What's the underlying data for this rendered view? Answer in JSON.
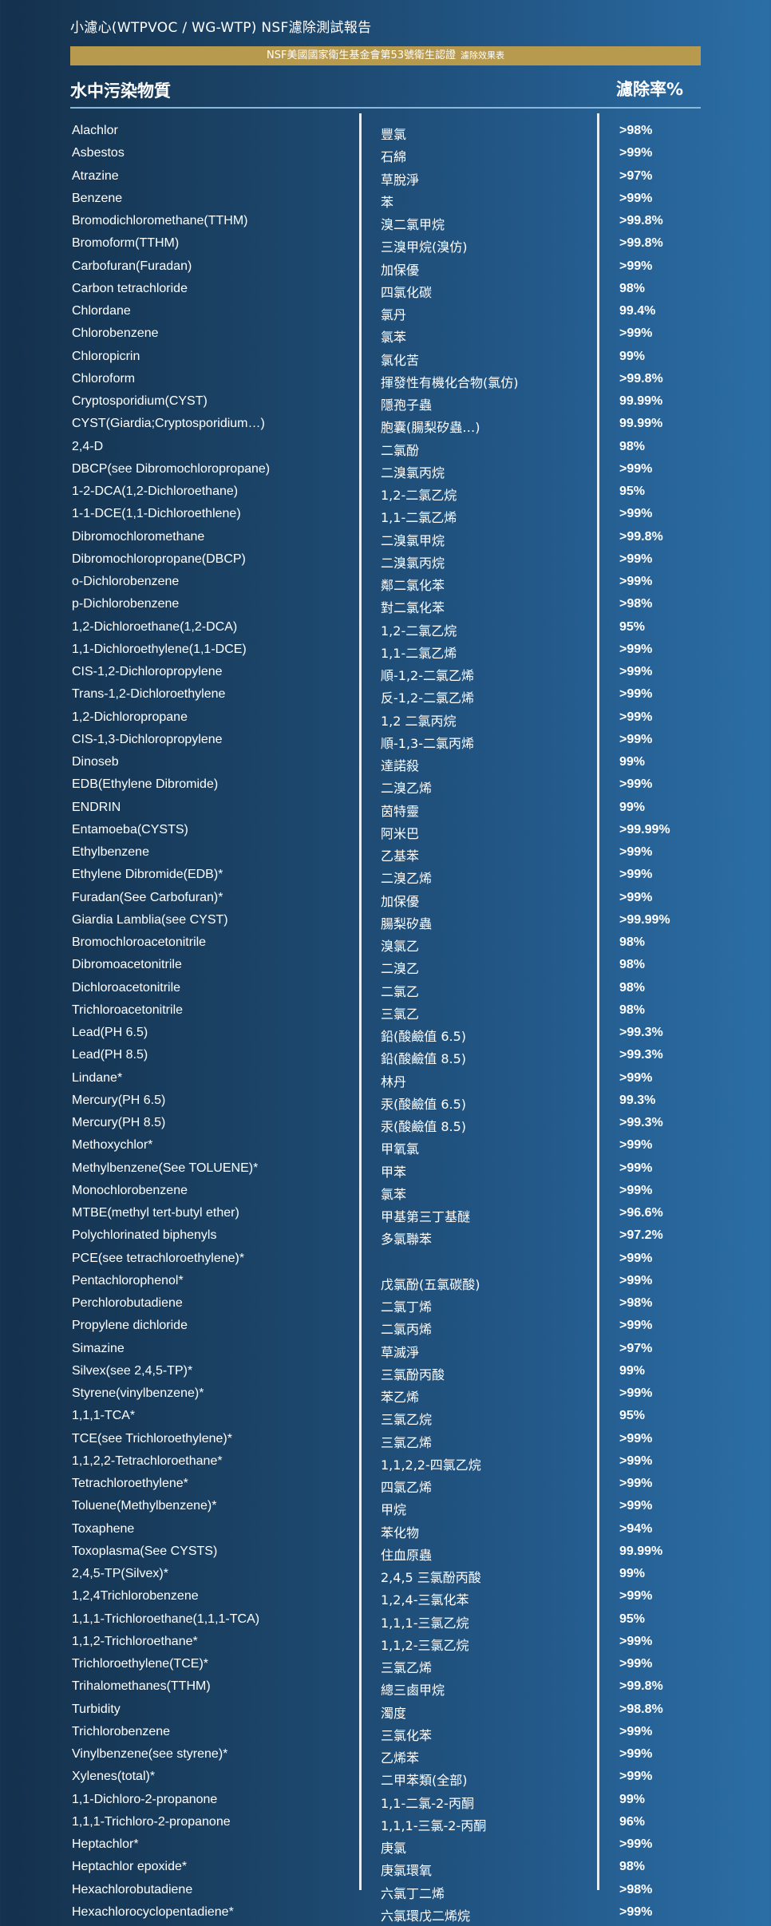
{
  "header": {
    "title": "小濾心(WTPVOC / WG-WTP) NSF濾除測試報告",
    "banner_main": "NSF美國國家衛生基金會第53號衛生認證",
    "banner_sub": "濾除效果表",
    "col_left": "水中污染物質",
    "col_right": "濾除率%"
  },
  "rows": [
    [
      "Alachlor",
      "豐氯",
      ">98%"
    ],
    [
      "Asbestos",
      "石綿",
      ">99%"
    ],
    [
      "Atrazine",
      "草脫淨",
      ">97%"
    ],
    [
      "Benzene",
      "苯",
      ">99%"
    ],
    [
      "Bromodichloromethane(TTHM)",
      "溴二氯甲烷",
      ">99.8%"
    ],
    [
      "Bromoform(TTHM)",
      "三溴甲烷(溴仿)",
      ">99.8%"
    ],
    [
      "Carbofuran(Furadan)",
      "加保優",
      ">99%"
    ],
    [
      "Carbon tetrachloride",
      "四氯化碳",
      "98%"
    ],
    [
      "Chlordane",
      "氯丹",
      "99.4%"
    ],
    [
      "Chlorobenzene",
      "氯苯",
      ">99%"
    ],
    [
      "Chloropicrin",
      "氯化苦",
      "99%"
    ],
    [
      "Chloroform",
      "揮發性有機化合物(氯仿)",
      ">99.8%"
    ],
    [
      "Cryptosporidium(CYST)",
      "隱孢子蟲",
      "99.99%"
    ],
    [
      "CYST(Giardia;Cryptosporidium…)",
      "胞囊(腸梨矽蟲…)",
      "99.99%"
    ],
    [
      "2,4-D",
      "二氯酚",
      "98%"
    ],
    [
      "DBCP(see Dibromochloropropane)",
      "二溴氯丙烷",
      ">99%"
    ],
    [
      "1-2-DCA(1,2-Dichloroethane)",
      "1,2-二氯乙烷",
      "95%"
    ],
    [
      "1-1-DCE(1,1-Dichloroethlene)",
      "1,1-二氯乙烯",
      ">99%"
    ],
    [
      "Dibromochloromethane",
      "二溴氯甲烷",
      ">99.8%"
    ],
    [
      "Dibromochloropropane(DBCP)",
      "二溴氯丙烷",
      ">99%"
    ],
    [
      "o-Dichlorobenzene",
      "鄰二氯化苯",
      ">99%"
    ],
    [
      "p-Dichlorobenzene",
      "對二氯化苯",
      ">98%"
    ],
    [
      "1,2-Dichloroethane(1,2-DCA)",
      "1,2-二氯乙烷",
      "95%"
    ],
    [
      "1,1-Dichloroethylene(1,1-DCE)",
      "1,1-二氯乙烯",
      ">99%"
    ],
    [
      "CIS-1,2-Dichloropropylene",
      "順-1,2-二氯乙烯",
      ">99%"
    ],
    [
      "Trans-1,2-Dichloroethylene",
      "反-1,2-二氯乙烯",
      ">99%"
    ],
    [
      "1,2-Dichloropropane",
      "1,2 二氯丙烷",
      ">99%"
    ],
    [
      "CIS-1,3-Dichloropropylene",
      "順-1,3-二氯丙烯",
      ">99%"
    ],
    [
      "Dinoseb",
      "達諾殺",
      "99%"
    ],
    [
      "EDB(Ethylene Dibromide)",
      "二溴乙烯",
      ">99%"
    ],
    [
      "ENDRIN",
      "茵特靈",
      "99%"
    ],
    [
      "Entamoeba(CYSTS)",
      "阿米巴",
      ">99.99%"
    ],
    [
      "Ethylbenzene",
      "乙基苯",
      ">99%"
    ],
    [
      "Ethylene Dibromide(EDB)*",
      "二溴乙烯",
      ">99%"
    ],
    [
      "Furadan(See Carbofuran)*",
      "加保優",
      ">99%"
    ],
    [
      "Giardia Lamblia(see CYST)",
      "腸梨矽蟲",
      ">99.99%"
    ],
    [
      "Bromochloroacetonitrile",
      "溴氯乙",
      "98%"
    ],
    [
      "Dibromoacetonitrile",
      "二溴乙",
      "98%"
    ],
    [
      "Dichloroacetonitrile",
      "二氯乙",
      "98%"
    ],
    [
      "Trichloroacetonitrile",
      "三氯乙",
      "98%"
    ],
    [
      "Lead(PH 6.5)",
      "鉛(酸鹼值 6.5)",
      ">99.3%"
    ],
    [
      "Lead(PH 8.5)",
      "鉛(酸鹼值 8.5)",
      ">99.3%"
    ],
    [
      "Lindane*",
      "林丹",
      ">99%"
    ],
    [
      "Mercury(PH 6.5)",
      "汞(酸鹼值 6.5)",
      "99.3%"
    ],
    [
      "Mercury(PH 8.5)",
      "汞(酸鹼值 8.5)",
      ">99.3%"
    ],
    [
      "Methoxychlor*",
      "甲氧氯",
      ">99%"
    ],
    [
      "Methylbenzene(See TOLUENE)*",
      "甲苯",
      ">99%"
    ],
    [
      "Monochlorobenzene",
      "氯苯",
      ">99%"
    ],
    [
      "MTBE(methyl tert-butyl ether)",
      "甲基第三丁基醚",
      ">96.6%"
    ],
    [
      "Polychlorinated biphenyls",
      "多氯聯苯",
      ">97.2%"
    ],
    [
      "PCE(see tetrachloroethylene)*",
      "",
      ">99%"
    ],
    [
      "Pentachlorophenol*",
      "戊氯酚(五氯碳酸)",
      ">99%"
    ],
    [
      "Perchlorobutadiene",
      "二氯丁烯",
      ">98%"
    ],
    [
      "Propylene dichloride",
      "二氯丙烯",
      ">99%"
    ],
    [
      "Simazine",
      "草滅淨",
      ">97%"
    ],
    [
      "Silvex(see 2,4,5-TP)*",
      "三氯酚丙酸",
      "99%"
    ],
    [
      "Styrene(vinylbenzene)*",
      "苯乙烯",
      ">99%"
    ],
    [
      "1,1,1-TCA*",
      "三氯乙烷",
      "95%"
    ],
    [
      "TCE(see Trichloroethylene)*",
      "三氯乙烯",
      ">99%"
    ],
    [
      "1,1,2,2-Tetrachloroethane*",
      "1,1,2,2-四氯乙烷",
      ">99%"
    ],
    [
      "Tetrachloroethylene*",
      "四氯乙烯",
      ">99%"
    ],
    [
      "Toluene(Methylbenzene)*",
      "甲烷",
      ">99%"
    ],
    [
      "Toxaphene",
      "苯化物",
      ">94%"
    ],
    [
      "Toxoplasma(See CYSTS)",
      "住血原蟲",
      "99.99%"
    ],
    [
      "2,4,5-TP(Silvex)*",
      "2,4,5 三氯酚丙酸",
      "99%"
    ],
    [
      "1,2,4Trichlorobenzene",
      "1,2,4-三氯化苯",
      ">99%"
    ],
    [
      "1,1,1-Trichloroethane(1,1,1-TCA)",
      "1,1,1-三氯乙烷",
      "95%"
    ],
    [
      "1,1,2-Trichloroethane*",
      "1,1,2-三氯乙烷",
      ">99%"
    ],
    [
      "Trichloroethylene(TCE)*",
      "三氯乙烯",
      ">99%"
    ],
    [
      "Trihalomethanes(TTHM)",
      "總三鹵甲烷",
      ">99.8%"
    ],
    [
      "Turbidity",
      "濁度",
      ">98.8%"
    ],
    [
      "Trichlorobenzene",
      "三氯化苯",
      ">99%"
    ],
    [
      "Vinylbenzene(see styrene)*",
      "乙烯苯",
      ">99%"
    ],
    [
      "Xylenes(total)*",
      "二甲苯類(全部)",
      ">99%"
    ],
    [
      "1,1-Dichloro-2-propanone",
      "1,1-二氯-2-丙酮",
      "99%"
    ],
    [
      "1,1,1-Trichloro-2-propanone",
      "1,1,1-三氯-2-丙酮",
      "96%"
    ],
    [
      "Heptachlor*",
      "庚氯",
      ">99%"
    ],
    [
      "Heptachlor epoxide*",
      "庚氯環氧",
      "98%"
    ],
    [
      "Hexachlorobutadiene",
      "六氯丁二烯",
      ">98%"
    ],
    [
      "Hexachlorocyclopentadiene*",
      "六氯環戊二烯烷",
      ">99%"
    ]
  ]
}
